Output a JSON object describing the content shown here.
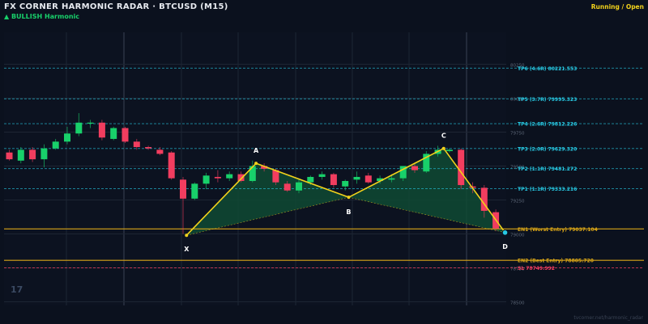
{
  "header": {
    "title": "FX CORNER HARMONIC RADAR  ·  BTCUSD (M15)",
    "subtitle": "▲ BULLISH  Harmonic",
    "status": "Running / Open",
    "logo": "17",
    "watermark": "tvcorner.net/harmonic_radar"
  },
  "colors": {
    "background": "#0b111e",
    "bull": "#18d06a",
    "bear": "#f23d5f",
    "pattern_line": "#f2d21b",
    "pattern_fill": "#0f4a34",
    "tp": "#27c9e3",
    "entry": "#d9a517",
    "sl": "#f23d5f"
  },
  "chart_data": {
    "type": "candlestick",
    "ylim": [
      78500,
      80510
    ],
    "yticks": [
      {
        "value": 80250,
        "label": "80250"
      },
      {
        "value": 80000,
        "label": "80000"
      },
      {
        "value": 79750,
        "label": "79750"
      },
      {
        "value": 79500,
        "label": "79500"
      },
      {
        "value": 79250,
        "label": "79250"
      },
      {
        "value": 79000,
        "label": "79000"
      },
      {
        "value": 78750,
        "label": "78750"
      },
      {
        "value": 78500,
        "label": "78500"
      }
    ],
    "candles": [
      {
        "o": 79600,
        "h": 79620,
        "l": 79540,
        "c": 79550
      },
      {
        "o": 79540,
        "h": 79640,
        "l": 79520,
        "c": 79620
      },
      {
        "o": 79620,
        "h": 79640,
        "l": 79530,
        "c": 79550
      },
      {
        "o": 79550,
        "h": 79660,
        "l": 79490,
        "c": 79630
      },
      {
        "o": 79630,
        "h": 79700,
        "l": 79620,
        "c": 79680
      },
      {
        "o": 79680,
        "h": 79790,
        "l": 79660,
        "c": 79740
      },
      {
        "o": 79740,
        "h": 79890,
        "l": 79720,
        "c": 79820
      },
      {
        "o": 79820,
        "h": 79840,
        "l": 79780,
        "c": 79820
      },
      {
        "o": 79820,
        "h": 79840,
        "l": 79690,
        "c": 79710
      },
      {
        "o": 79700,
        "h": 79790,
        "l": 79690,
        "c": 79780
      },
      {
        "o": 79780,
        "h": 79790,
        "l": 79670,
        "c": 79680
      },
      {
        "o": 79680,
        "h": 79700,
        "l": 79620,
        "c": 79640
      },
      {
        "o": 79640,
        "h": 79650,
        "l": 79620,
        "c": 79630
      },
      {
        "o": 79620,
        "h": 79640,
        "l": 79580,
        "c": 79590
      },
      {
        "o": 79600,
        "h": 79610,
        "l": 79400,
        "c": 79410
      },
      {
        "o": 79400,
        "h": 79420,
        "l": 79000,
        "c": 79260
      },
      {
        "o": 79260,
        "h": 79380,
        "l": 79250,
        "c": 79370
      },
      {
        "o": 79370,
        "h": 79450,
        "l": 79330,
        "c": 79430
      },
      {
        "o": 79420,
        "h": 79470,
        "l": 79380,
        "c": 79410
      },
      {
        "o": 79410,
        "h": 79460,
        "l": 79390,
        "c": 79440
      },
      {
        "o": 79440,
        "h": 79460,
        "l": 79380,
        "c": 79390
      },
      {
        "o": 79390,
        "h": 79540,
        "l": 79380,
        "c": 79500
      },
      {
        "o": 79500,
        "h": 79520,
        "l": 79460,
        "c": 79480
      },
      {
        "o": 79470,
        "h": 79480,
        "l": 79360,
        "c": 79380
      },
      {
        "o": 79370,
        "h": 79390,
        "l": 79310,
        "c": 79320
      },
      {
        "o": 79320,
        "h": 79400,
        "l": 79300,
        "c": 79380
      },
      {
        "o": 79380,
        "h": 79430,
        "l": 79360,
        "c": 79420
      },
      {
        "o": 79420,
        "h": 79460,
        "l": 79400,
        "c": 79440
      },
      {
        "o": 79440,
        "h": 79450,
        "l": 79340,
        "c": 79360
      },
      {
        "o": 79350,
        "h": 79400,
        "l": 79320,
        "c": 79390
      },
      {
        "o": 79400,
        "h": 79460,
        "l": 79370,
        "c": 79420
      },
      {
        "o": 79430,
        "h": 79450,
        "l": 79370,
        "c": 79380
      },
      {
        "o": 79390,
        "h": 79430,
        "l": 79370,
        "c": 79410
      },
      {
        "o": 79400,
        "h": 79440,
        "l": 79380,
        "c": 79410
      },
      {
        "o": 79410,
        "h": 79500,
        "l": 79390,
        "c": 79500
      },
      {
        "o": 79500,
        "h": 79520,
        "l": 79450,
        "c": 79470
      },
      {
        "o": 79460,
        "h": 79610,
        "l": 79450,
        "c": 79590
      },
      {
        "o": 79590,
        "h": 79650,
        "l": 79570,
        "c": 79620
      },
      {
        "o": 79610,
        "h": 79630,
        "l": 79600,
        "c": 79620
      },
      {
        "o": 79620,
        "h": 79630,
        "l": 79330,
        "c": 79360
      },
      {
        "o": 79350,
        "h": 79380,
        "l": 79300,
        "c": 79340
      },
      {
        "o": 79340,
        "h": 79360,
        "l": 79120,
        "c": 79170
      },
      {
        "o": 79160,
        "h": 79180,
        "l": 79020,
        "c": 79040
      }
    ],
    "pattern": {
      "points": [
        {
          "label": "X",
          "index": 15.3,
          "value": 78990
        },
        {
          "label": "A",
          "index": 21.3,
          "value": 79520
        },
        {
          "label": "B",
          "index": 29.3,
          "value": 79270
        },
        {
          "label": "C",
          "index": 37.5,
          "value": 79630
        },
        {
          "label": "D",
          "index": 42.8,
          "value": 79010
        }
      ]
    },
    "levels": [
      {
        "name": "TP6",
        "ratio": "4.6R",
        "value": "80221.553",
        "text": "TP6 (4.6R)  80221.553",
        "kind": "tp"
      },
      {
        "name": "TP5",
        "ratio": "3.7R",
        "value": "79995.323",
        "text": "TP5 (3.7R)  79995.323",
        "kind": "tp"
      },
      {
        "name": "TP4",
        "ratio": "2.6R",
        "value": "79812.226",
        "text": "TP4 (2.6R)  79812.226",
        "kind": "tp"
      },
      {
        "name": "TP3",
        "ratio": "2.0R",
        "value": "79629.320",
        "text": "TP3 (2.0R)  79629.320",
        "kind": "tp"
      },
      {
        "name": "TP2",
        "ratio": "1.1R",
        "value": "79481.272",
        "text": "TP2 (1.1R)  79481.272",
        "kind": "tp"
      },
      {
        "name": "TP1",
        "ratio": "1.1R",
        "value": "79333.216",
        "text": "TP1 (1.1R)  79333.216",
        "kind": "tp"
      },
      {
        "name": "EN1",
        "ratio": "Worst Entry",
        "value": "79037.104",
        "text": "EN1 (Worst Entry)  79037.104",
        "kind": "entry"
      },
      {
        "name": "EN2",
        "ratio": "Best Entry",
        "value": "78805.720",
        "text": "EN2 (Best Entry)  78805.720",
        "kind": "entry"
      },
      {
        "name": "SL",
        "ratio": "",
        "value": "78749.992",
        "text": "SL  78749.992",
        "kind": "sl"
      }
    ]
  }
}
